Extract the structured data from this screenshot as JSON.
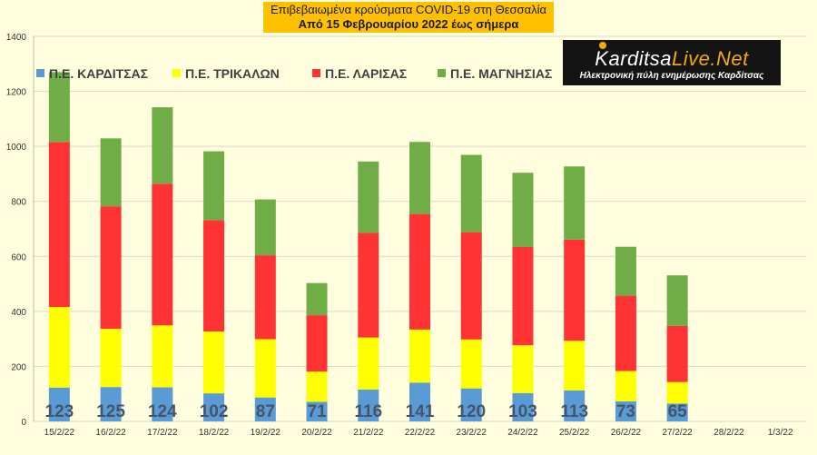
{
  "title": {
    "line1": "Επιβεβαιωμένα κρούσματα COVID-19 στη Θεσσαλία",
    "line2": "Από 15 Φεβρουαρίου 2022 έως σήμερα"
  },
  "logo": {
    "name_part1": "Karditsa",
    "name_part2": "Live.Net",
    "tagline": "Ηλεκτρονική πύλη ενημέρωσης Καρδίτσας"
  },
  "chart_data": {
    "type": "bar",
    "stacked": true,
    "categories": [
      "15/2/22",
      "16/2/22",
      "17/2/22",
      "18/2/22",
      "19/2/22",
      "20/2/22",
      "21/2/22",
      "22/2/22",
      "23/2/22",
      "24/2/22",
      "25/2/22",
      "26/2/22",
      "27/2/22",
      "28/2/22",
      "1/3/22"
    ],
    "series": [
      {
        "name": "Π.Ε. ΚΑΡΔΙΤΣΑΣ",
        "color": "#5B9BD5",
        "values": [
          123,
          125,
          124,
          102,
          87,
          71,
          116,
          141,
          120,
          103,
          113,
          73,
          65,
          null,
          null
        ]
      },
      {
        "name": "Π.Ε. ΤΡΙΚΑΛΩΝ",
        "color": "#FFFF00",
        "values": [
          293,
          212,
          225,
          225,
          212,
          110,
          189,
          193,
          178,
          174,
          180,
          110,
          78,
          null,
          null
        ]
      },
      {
        "name": "Π.Ε. ΛΑΡΙΣΑΣ",
        "color": "#FF3333",
        "values": [
          600,
          445,
          515,
          405,
          305,
          205,
          380,
          420,
          390,
          357,
          368,
          274,
          204,
          null,
          null
        ]
      },
      {
        "name": "Π.Ε. ΜΑΓΝΗΣΙΑΣ",
        "color": "#70AD47",
        "values": [
          254,
          247,
          278,
          250,
          203,
          117,
          260,
          262,
          281,
          270,
          266,
          178,
          184,
          null,
          null
        ]
      }
    ],
    "data_labels_series": "Π.Ε. ΚΑΡΔΙΤΣΑΣ",
    "ylim": [
      0,
      1400
    ],
    "yticks": [
      0,
      200,
      400,
      600,
      800,
      1000,
      1200,
      1400
    ],
    "grid": true,
    "legend_position": "top-left",
    "xlabel": "",
    "ylabel": ""
  },
  "colors": {
    "background": "#FFFFE0",
    "title_box": "#FFC000",
    "gridline": "#D9D9C8"
  }
}
